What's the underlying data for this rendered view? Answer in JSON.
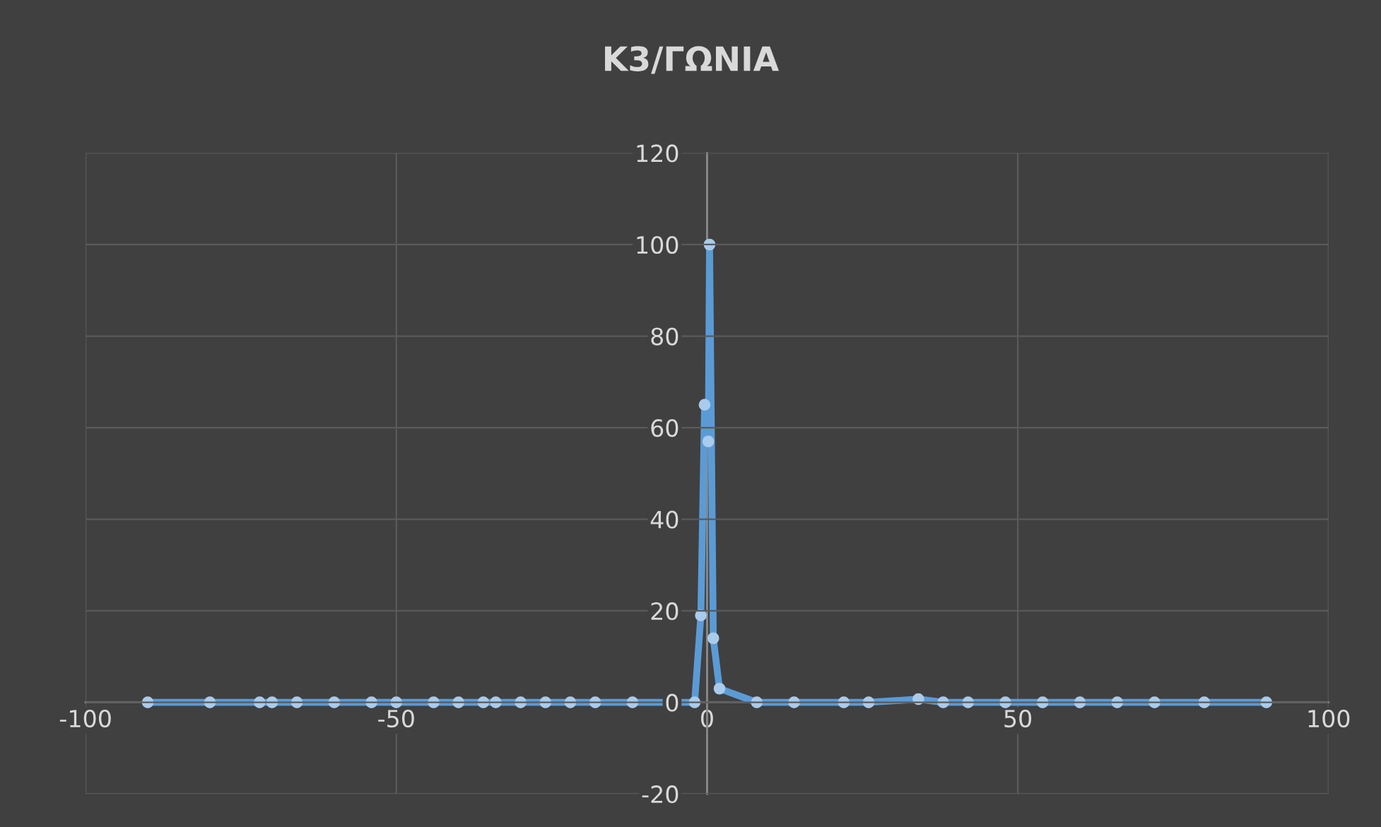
{
  "chart_data": {
    "type": "line",
    "title": "K3/ΓΩΝΙΑ",
    "series": [
      {
        "color": "#5b9bd5",
        "marker": "circle",
        "x": [
          -90,
          -80,
          -72,
          -70,
          -66,
          -60,
          -54,
          -50,
          -44,
          -40,
          -36,
          -34,
          -30,
          -26,
          -22,
          -18,
          -12,
          -2,
          -1,
          -0.4,
          0.2,
          0.4,
          1,
          2,
          8,
          14,
          22,
          26,
          34,
          38,
          42,
          48,
          54,
          60,
          66,
          72,
          80,
          90
        ],
        "values": [
          0,
          0,
          0,
          0,
          0,
          0,
          0,
          0,
          0,
          0,
          0,
          0,
          0,
          0,
          0,
          0,
          0,
          0,
          19,
          65,
          57,
          100,
          14,
          3,
          0,
          0,
          0,
          0,
          0.7,
          0,
          0,
          0,
          0,
          0,
          0,
          0,
          0,
          0
        ]
      }
    ],
    "xlim": [
      -100,
      100
    ],
    "xticks": [
      -100,
      -50,
      0,
      50,
      100
    ],
    "ylim": [
      -20,
      120
    ],
    "yticks": [
      -20,
      0,
      20,
      40,
      60,
      80,
      100,
      120
    ],
    "grid": true
  }
}
